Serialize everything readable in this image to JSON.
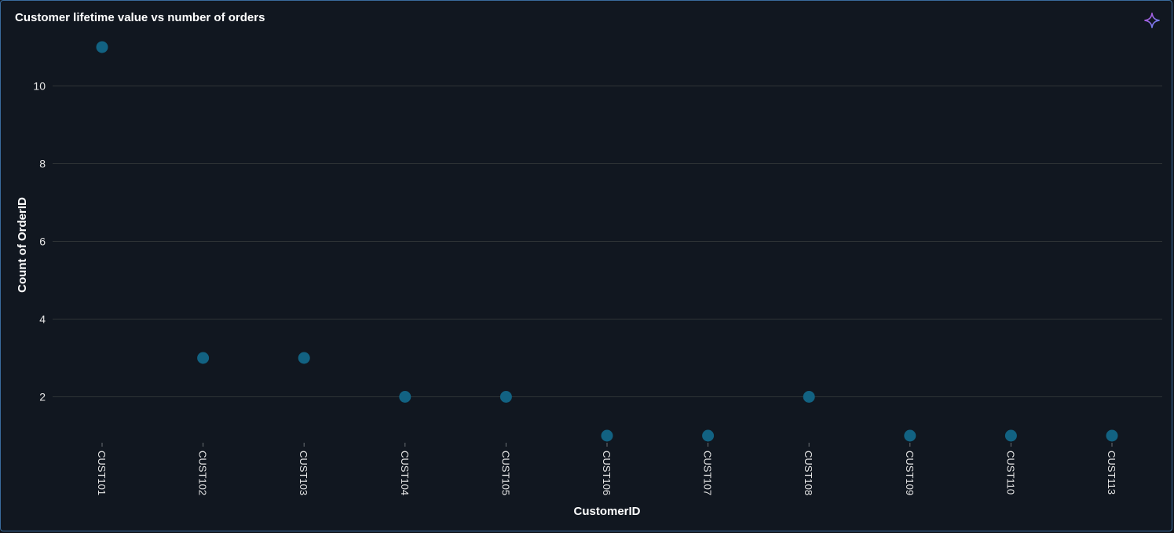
{
  "card": {
    "title": "Customer lifetime value vs number of orders",
    "ai_icon": "sparkle-icon"
  },
  "colors": {
    "background": "#111720",
    "marker": "#126282",
    "gridline": "#2f3436",
    "accent_border": "#3a6b9c",
    "icon_gradient": [
      "#c04bd6",
      "#5b8cf5"
    ]
  },
  "chart_data": {
    "type": "scatter",
    "title": "Customer lifetime value vs number of orders",
    "xlabel": "CustomerID",
    "ylabel": "Count of OrderID",
    "categories": [
      "CUST101",
      "CUST102",
      "CUST103",
      "CUST104",
      "CUST105",
      "CUST106",
      "CUST107",
      "CUST108",
      "CUST109",
      "CUST110",
      "CUST113"
    ],
    "values": [
      11,
      3,
      3,
      2,
      2,
      1,
      1,
      2,
      1,
      1,
      1
    ],
    "y_ticks": [
      2,
      4,
      6,
      8,
      10
    ],
    "ylim": [
      1,
      11
    ],
    "grid": true,
    "legend": "none"
  }
}
